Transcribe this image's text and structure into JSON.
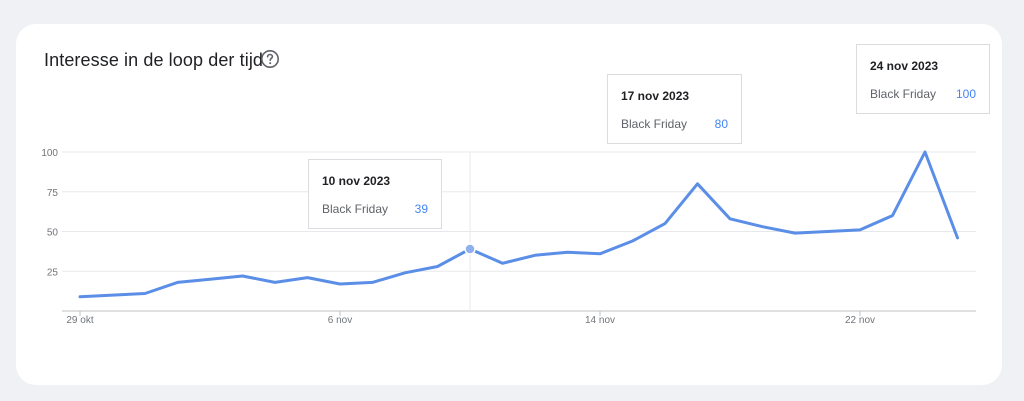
{
  "card": {
    "title": "Interesse in de loop der tijd",
    "help_icon": "help-circle-icon"
  },
  "tooltips": [
    {
      "date": "10 nov 2023",
      "series": "Black Friday",
      "value": "39"
    },
    {
      "date": "17 nov 2023",
      "series": "Black Friday",
      "value": "80"
    },
    {
      "date": "24 nov 2023",
      "series": "Black Friday",
      "value": "100"
    }
  ],
  "colors": {
    "line": "#5b8ee6",
    "grid": "#e6e8eb",
    "value_text": "#4285f4"
  },
  "chart_data": {
    "type": "line",
    "title": "",
    "xlabel": "",
    "ylabel": "",
    "x": [
      "2023-10-29",
      "2023-10-30",
      "2023-10-31",
      "2023-11-01",
      "2023-11-02",
      "2023-11-03",
      "2023-11-04",
      "2023-11-05",
      "2023-11-06",
      "2023-11-07",
      "2023-11-08",
      "2023-11-09",
      "2023-11-10",
      "2023-11-11",
      "2023-11-12",
      "2023-11-13",
      "2023-11-14",
      "2023-11-15",
      "2023-11-16",
      "2023-11-17",
      "2023-11-18",
      "2023-11-19",
      "2023-11-20",
      "2023-11-21",
      "2023-11-22",
      "2023-11-23",
      "2023-11-24",
      "2023-11-25"
    ],
    "series": [
      {
        "name": "Black Friday",
        "values": [
          9,
          10,
          11,
          18,
          20,
          22,
          18,
          21,
          17,
          18,
          24,
          28,
          39,
          30,
          35,
          37,
          36,
          44,
          55,
          80,
          58,
          53,
          49,
          50,
          51,
          60,
          100,
          46
        ]
      }
    ],
    "ylim": [
      0,
      100
    ],
    "yticks": [
      "100",
      "75",
      "50",
      "25"
    ],
    "ytick_values": [
      100,
      75,
      50,
      25
    ],
    "xtick_labels": [
      {
        "label": "29 okt",
        "index": 0
      },
      {
        "label": "6 nov",
        "index": 8
      },
      {
        "label": "14 nov",
        "index": 16
      },
      {
        "label": "22 nov",
        "index": 24
      }
    ],
    "highlight_index": 12,
    "grid": true,
    "legend": "none"
  }
}
